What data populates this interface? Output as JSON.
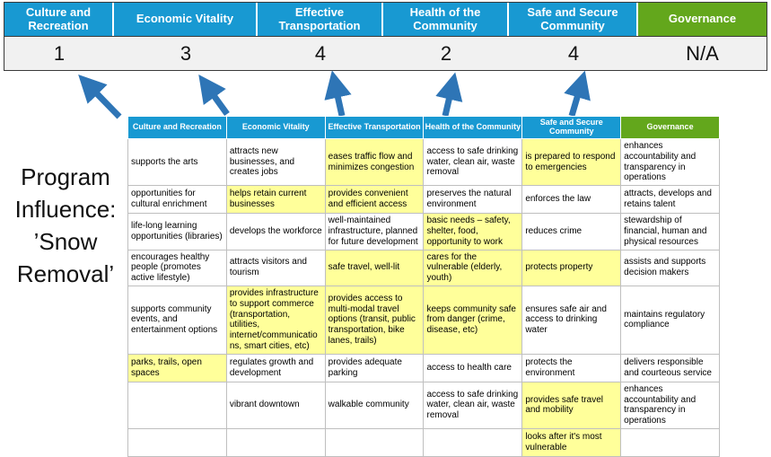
{
  "title": {
    "lines": [
      "Program",
      "Influence:",
      "’Snow",
      "Removal’"
    ]
  },
  "colors": {
    "blue": "#1899D2",
    "green": "#63A71C",
    "highlight": "#FFFF9A",
    "arrow": "#2E75B6"
  },
  "scoreboard": [
    {
      "label": "Culture and Recreation",
      "score": "1",
      "color": "blue"
    },
    {
      "label": "Economic Vitality",
      "score": "3",
      "color": "blue"
    },
    {
      "label": "Effective Transportation",
      "score": "4",
      "color": "blue"
    },
    {
      "label": "Health of the Community",
      "score": "2",
      "color": "blue"
    },
    {
      "label": "Safe and Secure Community",
      "score": "4",
      "color": "blue"
    },
    {
      "label": "Governance",
      "score": "N/A",
      "color": "green"
    }
  ],
  "table": {
    "headers": [
      {
        "label": "Culture and Recreation",
        "color": "blue"
      },
      {
        "label": "Economic Vitality",
        "color": "blue"
      },
      {
        "label": "Effective Transportation",
        "color": "blue"
      },
      {
        "label": "Health of the Community",
        "color": "blue"
      },
      {
        "label": "Safe and Secure Community",
        "color": "blue"
      },
      {
        "label": "Governance",
        "color": "green"
      }
    ],
    "rows": [
      [
        {
          "text": "supports the arts",
          "highlight": false
        },
        {
          "text": "attracts new businesses, and creates jobs",
          "highlight": false
        },
        {
          "text": "eases traffic flow and minimizes congestion",
          "highlight": true
        },
        {
          "text": "access to safe drinking water, clean air, waste removal",
          "highlight": false
        },
        {
          "text": "is prepared to respond to emergencies",
          "highlight": true
        },
        {
          "text": "enhances accountability and transparency in operations",
          "highlight": false
        }
      ],
      [
        {
          "text": "opportunities for cultural enrichment",
          "highlight": false
        },
        {
          "text": "helps retain current businesses",
          "highlight": true
        },
        {
          "text": "provides convenient and efficient access",
          "highlight": true
        },
        {
          "text": "preserves the natural environment",
          "highlight": false
        },
        {
          "text": "enforces the law",
          "highlight": false
        },
        {
          "text": "attracts, develops and retains talent",
          "highlight": false
        }
      ],
      [
        {
          "text": "life-long learning opportunities (libraries)",
          "highlight": false
        },
        {
          "text": "develops the workforce",
          "highlight": false
        },
        {
          "text": "well-maintained infrastructure, planned for future development",
          "highlight": false
        },
        {
          "text": "basic needs – safety, shelter, food, opportunity to work",
          "highlight": true
        },
        {
          "text": "reduces crime",
          "highlight": false
        },
        {
          "text": "stewardship of financial, human and physical resources",
          "highlight": false
        }
      ],
      [
        {
          "text": "encourages healthy people (promotes active lifestyle)",
          "highlight": false
        },
        {
          "text": "attracts visitors and tourism",
          "highlight": false
        },
        {
          "text": "safe travel, well-lit",
          "highlight": true
        },
        {
          "text": "cares for the vulnerable (elderly, youth)",
          "highlight": true
        },
        {
          "text": "protects property",
          "highlight": true
        },
        {
          "text": "assists and supports decision makers",
          "highlight": false
        }
      ],
      [
        {
          "text": "supports community events, and entertainment options",
          "highlight": false
        },
        {
          "text": "provides infrastructure to support commerce (transportation, utilities, internet/communications, smart cities, etc)",
          "highlight": true
        },
        {
          "text": "provides access to multi-modal travel options (transit, public transportation, bike lanes, trails)",
          "highlight": true
        },
        {
          "text": "keeps community safe from danger (crime, disease, etc)",
          "highlight": true
        },
        {
          "text": "ensures safe air and access to drinking water",
          "highlight": false
        },
        {
          "text": "maintains regulatory compliance",
          "highlight": false
        }
      ],
      [
        {
          "text": "parks, trails, open spaces",
          "highlight": true
        },
        {
          "text": "regulates growth and development",
          "highlight": false
        },
        {
          "text": "provides adequate parking",
          "highlight": false
        },
        {
          "text": "access to health care",
          "highlight": false
        },
        {
          "text": "protects the environment",
          "highlight": false
        },
        {
          "text": "delivers responsible and courteous service",
          "highlight": false
        }
      ],
      [
        {
          "text": "",
          "highlight": false
        },
        {
          "text": "vibrant downtown",
          "highlight": false
        },
        {
          "text": "walkable community",
          "highlight": false
        },
        {
          "text": "access to safe drinking water, clean air, waste removal",
          "highlight": false
        },
        {
          "text": "provides safe travel and mobility",
          "highlight": true
        },
        {
          "text": "enhances accountability and transparency in operations",
          "highlight": false
        }
      ],
      [
        {
          "text": "",
          "highlight": false
        },
        {
          "text": "",
          "highlight": false
        },
        {
          "text": "",
          "highlight": false
        },
        {
          "text": "",
          "highlight": false
        },
        {
          "text": "looks after it's most vulnerable",
          "highlight": true
        },
        {
          "text": "",
          "highlight": false
        }
      ]
    ]
  }
}
